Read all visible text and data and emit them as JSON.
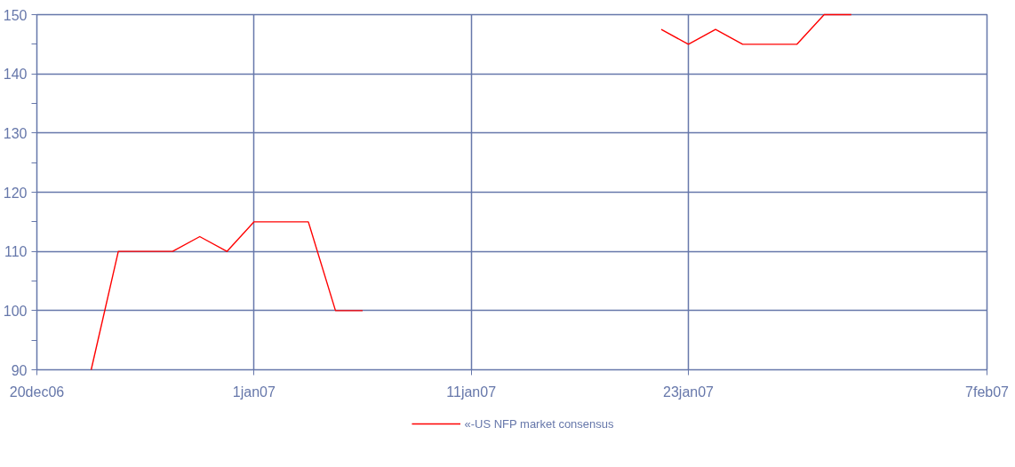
{
  "chart_data": {
    "type": "line",
    "categories": [
      "20dec06",
      null,
      null,
      null,
      null,
      null,
      null,
      null,
      "1jan07",
      null,
      null,
      null,
      null,
      null,
      null,
      null,
      "11jan07",
      null,
      null,
      null,
      null,
      null,
      null,
      null,
      "23jan07",
      null,
      null,
      null,
      null,
      null,
      null,
      null,
      null,
      null,
      null,
      "7feb07"
    ],
    "series": [
      {
        "name": "«-US NFP market consensus",
        "color": "#ff0000",
        "values": [
          null,
          null,
          90,
          110,
          110,
          110,
          112.5,
          110,
          115,
          115,
          115,
          100,
          100,
          null,
          null,
          null,
          null,
          null,
          null,
          null,
          null,
          null,
          null,
          147.5,
          145,
          147.5,
          145,
          145,
          145,
          150,
          150,
          null,
          null,
          null,
          null,
          null
        ]
      }
    ],
    "ylim": [
      90,
      150
    ],
    "yticks": [
      90,
      {
        "value": 95,
        "label": null
      },
      100,
      {
        "value": 105,
        "label": null
      },
      110,
      {
        "value": 115,
        "label": null
      },
      120,
      {
        "value": 125,
        "label": null
      },
      130,
      {
        "value": 135,
        "label": null
      },
      140,
      {
        "value": 145,
        "label": null
      },
      150
    ],
    "grid": true,
    "legend": "bottom",
    "marker": "none",
    "line_style": "solid"
  }
}
